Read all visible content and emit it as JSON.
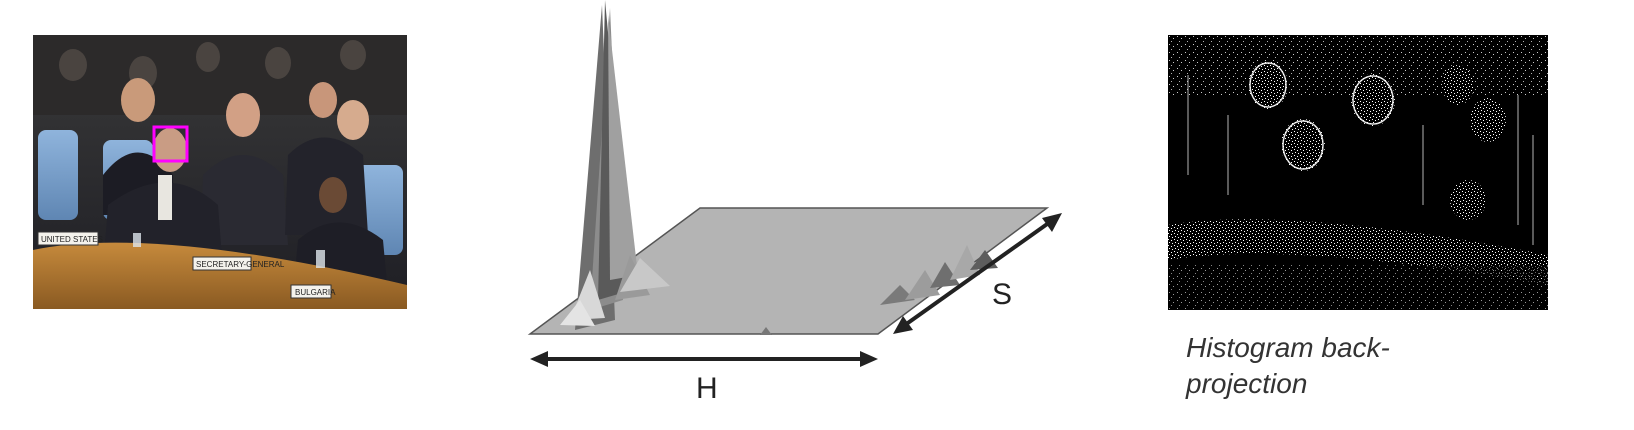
{
  "panels": {
    "photo": {
      "description_icon": "conference-photo-icon"
    },
    "histogram": {
      "axis_h_label": "H",
      "axis_s_label": "S"
    },
    "backprojection": {
      "caption": "Histogram back-projection"
    }
  },
  "colors": {
    "face_box": "#ff00ff",
    "plane": "#b0b0b0",
    "arrow": "#222222"
  }
}
